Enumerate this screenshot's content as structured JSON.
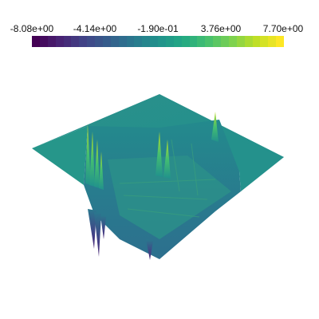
{
  "scalar_bar": {
    "tick_labels": [
      "-8.08e+00",
      "-4.14e+00",
      "-1.90e-01",
      "3.76e+00",
      "7.70e+00"
    ],
    "range": [
      -8.08,
      7.7
    ],
    "colormap": "viridis",
    "num_bands": 32,
    "colors": [
      "#440154",
      "#482475",
      "#414487",
      "#355f8d",
      "#2a788e",
      "#21918c",
      "#22a884",
      "#44bf70",
      "#7ad151",
      "#bddf26",
      "#fde725"
    ]
  },
  "surface": {
    "plane_color": "#26938b",
    "plane_shade_color": "#1f8a8c",
    "wall_color": "#2b7d8e"
  }
}
